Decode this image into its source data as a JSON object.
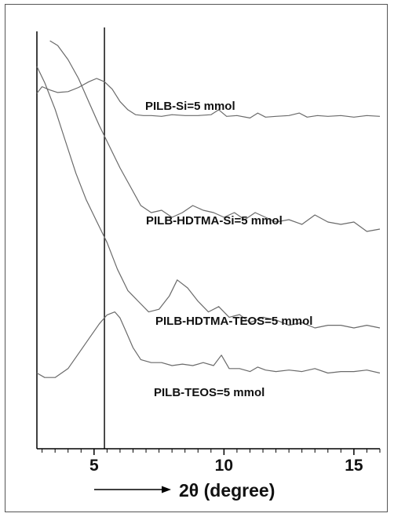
{
  "chart_data": {
    "type": "line",
    "title": "",
    "xlabel": "2θ (degree)",
    "ylabel": "",
    "xlim": [
      2.8,
      16.0
    ],
    "x_ticks": [
      5,
      10,
      15
    ],
    "x_tick_labels": [
      "5",
      "10",
      "15"
    ],
    "reference_line_x": 5.4,
    "legend": "none",
    "series": [
      {
        "name": "PILB-Si=5 mmol",
        "x": [
          2.8,
          3.0,
          3.3,
          3.6,
          4.0,
          4.4,
          4.8,
          5.1,
          5.4,
          5.7,
          6.0,
          6.3,
          6.6,
          6.9,
          7.2,
          7.6,
          8.0,
          8.5,
          9.0,
          9.5,
          9.8,
          10.1,
          10.5,
          11.0,
          11.3,
          11.6,
          12.0,
          12.5,
          12.9,
          13.2,
          13.6,
          14.0,
          14.5,
          15.0,
          15.5,
          16.0
        ],
        "y": [
          0.82,
          0.9,
          0.86,
          0.83,
          0.84,
          0.89,
          0.96,
          1.0,
          0.96,
          0.87,
          0.72,
          0.62,
          0.56,
          0.55,
          0.55,
          0.54,
          0.56,
          0.55,
          0.55,
          0.56,
          0.62,
          0.54,
          0.55,
          0.52,
          0.58,
          0.53,
          0.54,
          0.55,
          0.58,
          0.53,
          0.55,
          0.54,
          0.55,
          0.53,
          0.55,
          0.54
        ]
      },
      {
        "name": "PILB-HDTMA-Si=5 mmol",
        "x": [
          3.3,
          3.6,
          4.0,
          4.4,
          4.8,
          5.2,
          5.6,
          6.0,
          6.4,
          6.8,
          7.2,
          7.6,
          8.0,
          8.4,
          8.8,
          9.2,
          9.6,
          10.0,
          10.4,
          10.8,
          11.2,
          11.6,
          12.0,
          12.5,
          13.0,
          13.5,
          14.0,
          14.5,
          15.0,
          15.5,
          16.0
        ],
        "y": [
          1.0,
          0.98,
          0.92,
          0.84,
          0.74,
          0.64,
          0.55,
          0.46,
          0.38,
          0.3,
          0.27,
          0.28,
          0.25,
          0.27,
          0.3,
          0.28,
          0.27,
          0.25,
          0.27,
          0.24,
          0.27,
          0.25,
          0.23,
          0.24,
          0.22,
          0.26,
          0.23,
          0.22,
          0.23,
          0.19,
          0.2
        ]
      },
      {
        "name": "PILB-HDTMA-TEOS=5 mmol",
        "x": [
          2.8,
          3.1,
          3.5,
          3.9,
          4.3,
          4.7,
          5.1,
          5.5,
          5.9,
          6.3,
          6.7,
          7.1,
          7.5,
          7.9,
          8.2,
          8.6,
          9.0,
          9.4,
          9.8,
          10.2,
          10.6,
          11.0,
          11.5,
          12.0,
          12.5,
          13.0,
          13.5,
          14.0,
          14.5,
          15.0,
          15.5,
          16.0
        ],
        "y": [
          0.98,
          0.92,
          0.82,
          0.7,
          0.58,
          0.48,
          0.4,
          0.32,
          0.22,
          0.14,
          0.1,
          0.06,
          0.07,
          0.12,
          0.18,
          0.15,
          0.1,
          0.06,
          0.08,
          0.04,
          0.05,
          0.02,
          0.04,
          0.03,
          0.01,
          0.02,
          0.0,
          0.01,
          0.01,
          0.0,
          0.01,
          0.0
        ]
      },
      {
        "name": "PILB-TEOS=5 mmol",
        "x": [
          2.8,
          3.1,
          3.5,
          4.0,
          4.4,
          4.8,
          5.2,
          5.5,
          5.8,
          6.0,
          6.2,
          6.5,
          6.8,
          7.2,
          7.6,
          8.0,
          8.4,
          8.8,
          9.2,
          9.6,
          9.9,
          10.2,
          10.6,
          11.0,
          11.3,
          11.6,
          12.0,
          12.5,
          13.0,
          13.5,
          14.0,
          14.5,
          15.0,
          15.5,
          16.0
        ],
        "y": [
          0.05,
          0.02,
          0.02,
          0.08,
          0.18,
          0.28,
          0.38,
          0.44,
          0.46,
          0.42,
          0.34,
          0.22,
          0.14,
          0.12,
          0.12,
          0.1,
          0.11,
          0.1,
          0.12,
          0.1,
          0.17,
          0.08,
          0.08,
          0.06,
          0.09,
          0.07,
          0.06,
          0.07,
          0.06,
          0.08,
          0.05,
          0.06,
          0.06,
          0.07,
          0.05
        ]
      }
    ]
  }
}
